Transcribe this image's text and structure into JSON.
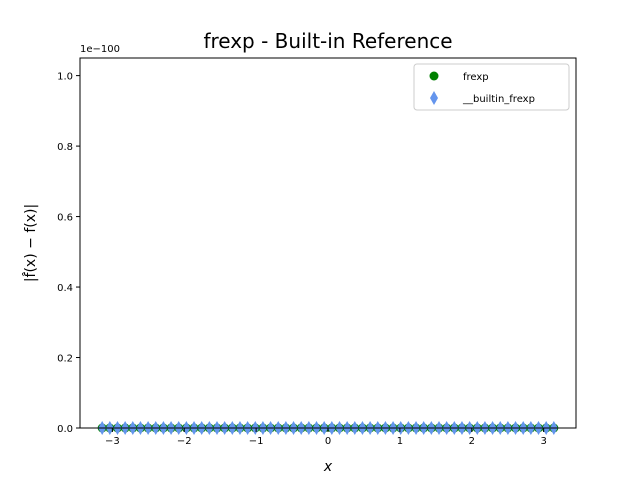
{
  "chart_data": {
    "type": "scatter",
    "title": "frexp - Built-in Reference",
    "xlabel": "x",
    "ylabel": "|f̂(x) − f(x)|",
    "y_offset_text": "1e−100",
    "xlim": [
      -3.45,
      3.45
    ],
    "ylim": [
      0,
      1.05
    ],
    "y_scale_exponent": -100,
    "grid": false,
    "legend_position": "top-right",
    "x_ticks": [
      -3,
      -2,
      -1,
      0,
      1,
      2,
      3
    ],
    "x_tick_labels": [
      "−3",
      "−2",
      "−1",
      "0",
      "1",
      "2",
      "3"
    ],
    "y_ticks": [
      0.0,
      0.2,
      0.4,
      0.6,
      0.8,
      1.0
    ],
    "y_tick_labels": [
      "0.0",
      "0.2",
      "0.4",
      "0.6",
      "0.8",
      "1.0"
    ],
    "series": [
      {
        "name": "frexp",
        "marker": "circle",
        "color": "#008000",
        "x_range": [
          -3.14159,
          3.14159
        ],
        "point_count": 60,
        "y_constant": 0
      },
      {
        "name": "__builtin_frexp",
        "marker": "diamond",
        "color": "#6495ED",
        "x_range": [
          -3.14159,
          3.14159
        ],
        "point_count": 60,
        "y_constant": 0
      }
    ]
  }
}
